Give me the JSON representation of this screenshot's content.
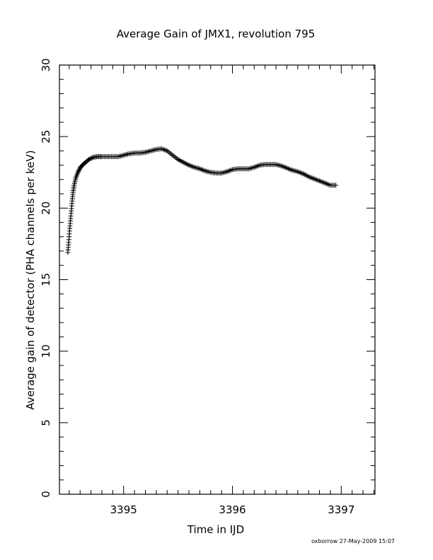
{
  "chart_data": {
    "type": "scatter",
    "title": "Average Gain of JMX1, revolution 795",
    "xlabel": "Time in IJD",
    "ylabel": "Average gain of detector (PHA channels per keV)",
    "xlim": [
      3394.41,
      3397.31
    ],
    "ylim": [
      0,
      30
    ],
    "xticks": [
      3395,
      3396,
      3397
    ],
    "yticks": [
      0,
      5,
      10,
      15,
      20,
      25,
      30
    ],
    "x_minor_step": 0.1,
    "y_minor_step": 1,
    "grid": false,
    "marker": "plus",
    "marker_color": "#000000",
    "series": [
      {
        "x": [
          3394.487,
          3394.495,
          3394.503,
          3394.511,
          3394.519,
          3394.527,
          3394.535,
          3394.545,
          3394.56,
          3394.58,
          3394.6,
          3394.62,
          3394.65,
          3394.68,
          3394.72,
          3394.76,
          3394.8,
          3394.85,
          3394.9,
          3394.95,
          3395.0,
          3395.05,
          3395.1,
          3395.15,
          3395.2,
          3395.25,
          3395.3,
          3395.35,
          3395.4,
          3395.45,
          3395.5,
          3395.55,
          3395.6,
          3395.65,
          3395.7,
          3395.75,
          3395.8,
          3395.85,
          3395.9,
          3395.95,
          3396.0,
          3396.05,
          3396.1,
          3396.15,
          3396.2,
          3396.25,
          3396.3,
          3396.35,
          3396.4,
          3396.45,
          3396.5,
          3396.55,
          3396.6,
          3396.65,
          3396.7,
          3396.75,
          3396.8,
          3396.85,
          3396.9,
          3396.95
        ],
        "y": [
          16.9,
          17.6,
          18.4,
          19.1,
          19.8,
          20.5,
          21.1,
          21.6,
          22.1,
          22.5,
          22.8,
          23.0,
          23.2,
          23.4,
          23.55,
          23.6,
          23.6,
          23.6,
          23.6,
          23.6,
          23.7,
          23.8,
          23.85,
          23.85,
          23.9,
          24.0,
          24.1,
          24.15,
          24.0,
          23.7,
          23.4,
          23.2,
          23.0,
          22.85,
          22.75,
          22.6,
          22.5,
          22.45,
          22.45,
          22.55,
          22.7,
          22.75,
          22.75,
          22.75,
          22.85,
          23.0,
          23.05,
          23.05,
          23.05,
          22.95,
          22.8,
          22.65,
          22.55,
          22.4,
          22.2,
          22.05,
          21.9,
          21.75,
          21.6,
          21.6
        ]
      }
    ]
  },
  "footer": "oxborrow 27-May-2009 15:07"
}
